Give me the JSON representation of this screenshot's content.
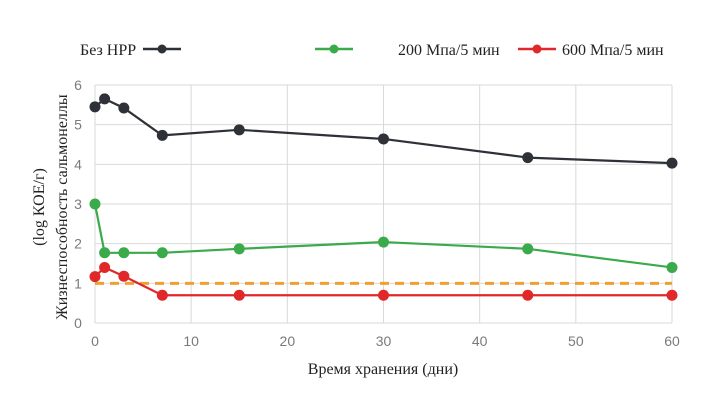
{
  "chart_data": {
    "type": "line",
    "xlabel": "Время хранения (дни)",
    "ylabel_line1": "Жизнеспособность сальмонеллы",
    "ylabel_line2": "(log КОЕ/г)",
    "xlim": [
      0,
      60
    ],
    "ylim": [
      0,
      6
    ],
    "xticks": [
      0,
      10,
      20,
      30,
      40,
      50,
      60
    ],
    "yticks": [
      0,
      1,
      2,
      3,
      4,
      5,
      6
    ],
    "grid": true,
    "legend_position": "top",
    "series": [
      {
        "name": "Без HPP",
        "color": "#2e3138",
        "x": [
          0,
          1,
          3,
          7,
          15,
          30,
          45,
          60
        ],
        "y": [
          5.45,
          5.65,
          5.42,
          4.73,
          4.87,
          4.64,
          4.17,
          4.03
        ]
      },
      {
        "name": "200 Мпа/5 мин",
        "color": "#3aaa4a",
        "x": [
          0,
          1,
          3,
          7,
          15,
          30,
          45,
          60
        ],
        "y": [
          3.0,
          1.77,
          1.77,
          1.77,
          1.87,
          2.04,
          1.87,
          1.4
        ]
      },
      {
        "name": "600 Мпа/5 мин",
        "color": "#e0282a",
        "x": [
          0,
          1,
          3,
          7,
          15,
          30,
          45,
          60
        ],
        "y": [
          1.17,
          1.4,
          1.18,
          0.7,
          0.7,
          0.7,
          0.7,
          0.7
        ]
      }
    ],
    "reference_line": {
      "y": 1.0,
      "color": "#f0a030",
      "style": "dashed"
    }
  }
}
